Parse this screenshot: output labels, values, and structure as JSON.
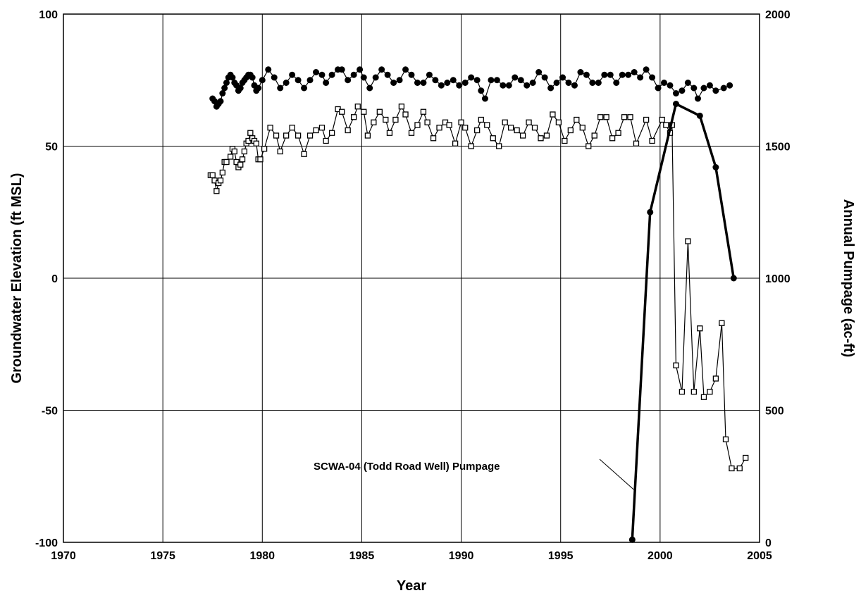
{
  "chart_data": {
    "type": "line",
    "title": "",
    "xlabel": "Year",
    "ylabel": "Groundwater Elevation (ft MSL)",
    "y2label": "Annual Pumpage (ac-ft)",
    "xlim": [
      1970,
      2005
    ],
    "ylim": [
      -100,
      100
    ],
    "y2lim": [
      0,
      2000
    ],
    "x_ticks": [
      "1970",
      "1975",
      "1980",
      "1985",
      "1990",
      "1995",
      "2000",
      "2005"
    ],
    "y_ticks": [
      "-100",
      "-50",
      "0",
      "50",
      "100"
    ],
    "y2_ticks": [
      "0",
      "500",
      "1000",
      "1500",
      "2000"
    ],
    "grid": true,
    "legend": "none",
    "annotation": {
      "text": "SCWA-04 (Todd Road Well) Pumpage",
      "points_to": {
        "x": 1998.6,
        "y2": 200
      }
    },
    "series": [
      {
        "axis": "left",
        "marker": "filled-circle",
        "color": "#000000",
        "points": [
          [
            1977.5,
            68
          ],
          [
            1977.6,
            67
          ],
          [
            1977.7,
            65
          ],
          [
            1977.8,
            66
          ],
          [
            1977.9,
            67
          ],
          [
            1978.0,
            70
          ],
          [
            1978.1,
            72
          ],
          [
            1978.2,
            74
          ],
          [
            1978.3,
            76
          ],
          [
            1978.4,
            77
          ],
          [
            1978.5,
            76
          ],
          [
            1978.6,
            74
          ],
          [
            1978.7,
            73
          ],
          [
            1978.8,
            71
          ],
          [
            1978.9,
            72
          ],
          [
            1979.0,
            74
          ],
          [
            1979.1,
            75
          ],
          [
            1979.2,
            76
          ],
          [
            1979.3,
            77
          ],
          [
            1979.4,
            77
          ],
          [
            1979.5,
            76
          ],
          [
            1979.6,
            73
          ],
          [
            1979.7,
            71
          ],
          [
            1979.8,
            72
          ],
          [
            1980.0,
            75
          ],
          [
            1980.3,
            79
          ],
          [
            1980.6,
            76
          ],
          [
            1980.9,
            72
          ],
          [
            1981.2,
            74
          ],
          [
            1981.5,
            77
          ],
          [
            1981.8,
            75
          ],
          [
            1982.1,
            72
          ],
          [
            1982.4,
            75
          ],
          [
            1982.7,
            78
          ],
          [
            1983.0,
            77
          ],
          [
            1983.2,
            74
          ],
          [
            1983.5,
            77
          ],
          [
            1983.8,
            79
          ],
          [
            1984.0,
            79
          ],
          [
            1984.3,
            75
          ],
          [
            1984.6,
            77
          ],
          [
            1984.9,
            79
          ],
          [
            1985.1,
            76
          ],
          [
            1985.4,
            72
          ],
          [
            1985.7,
            76
          ],
          [
            1986.0,
            79
          ],
          [
            1986.3,
            77
          ],
          [
            1986.6,
            74
          ],
          [
            1986.9,
            75
          ],
          [
            1987.2,
            79
          ],
          [
            1987.5,
            77
          ],
          [
            1987.8,
            74
          ],
          [
            1988.1,
            74
          ],
          [
            1988.4,
            77
          ],
          [
            1988.7,
            75
          ],
          [
            1989.0,
            73
          ],
          [
            1989.3,
            74
          ],
          [
            1989.6,
            75
          ],
          [
            1989.9,
            73
          ],
          [
            1990.2,
            74
          ],
          [
            1990.5,
            76
          ],
          [
            1990.8,
            75
          ],
          [
            1991.0,
            71
          ],
          [
            1991.2,
            68
          ],
          [
            1991.5,
            75
          ],
          [
            1991.8,
            75
          ],
          [
            1992.1,
            73
          ],
          [
            1992.4,
            73
          ],
          [
            1992.7,
            76
          ],
          [
            1993.0,
            75
          ],
          [
            1993.3,
            73
          ],
          [
            1993.6,
            74
          ],
          [
            1993.9,
            78
          ],
          [
            1994.2,
            76
          ],
          [
            1994.5,
            72
          ],
          [
            1994.8,
            74
          ],
          [
            1995.1,
            76
          ],
          [
            1995.4,
            74
          ],
          [
            1995.7,
            73
          ],
          [
            1996.0,
            78
          ],
          [
            1996.3,
            77
          ],
          [
            1996.6,
            74
          ],
          [
            1996.9,
            74
          ],
          [
            1997.2,
            77
          ],
          [
            1997.5,
            77
          ],
          [
            1997.8,
            74
          ],
          [
            1998.1,
            77
          ],
          [
            1998.4,
            77
          ],
          [
            1998.7,
            78
          ],
          [
            1999.0,
            76
          ],
          [
            1999.3,
            79
          ],
          [
            1999.6,
            76
          ],
          [
            1999.9,
            72
          ],
          [
            2000.2,
            74
          ],
          [
            2000.5,
            73
          ],
          [
            2000.8,
            70
          ],
          [
            2001.1,
            71
          ],
          [
            2001.4,
            74
          ],
          [
            2001.7,
            72
          ],
          [
            2001.9,
            68
          ],
          [
            2002.2,
            72
          ],
          [
            2002.5,
            73
          ],
          [
            2002.8,
            71
          ],
          [
            2003.2,
            72
          ],
          [
            2003.5,
            73
          ]
        ]
      },
      {
        "axis": "left",
        "marker": "open-square",
        "color": "#000000",
        "points": [
          [
            1977.4,
            39
          ],
          [
            1977.5,
            39
          ],
          [
            1977.6,
            37
          ],
          [
            1977.7,
            33
          ],
          [
            1977.8,
            36
          ],
          [
            1977.9,
            37
          ],
          [
            1978.0,
            40
          ],
          [
            1978.1,
            44
          ],
          [
            1978.2,
            44
          ],
          [
            1978.4,
            46
          ],
          [
            1978.5,
            49
          ],
          [
            1978.6,
            48
          ],
          [
            1978.7,
            44
          ],
          [
            1978.8,
            42
          ],
          [
            1978.9,
            43
          ],
          [
            1979.0,
            45
          ],
          [
            1979.1,
            48
          ],
          [
            1979.2,
            51
          ],
          [
            1979.3,
            52
          ],
          [
            1979.4,
            55
          ],
          [
            1979.5,
            53
          ],
          [
            1979.6,
            52
          ],
          [
            1979.7,
            51
          ],
          [
            1979.8,
            45
          ],
          [
            1979.9,
            45
          ],
          [
            1980.1,
            49
          ],
          [
            1980.4,
            57
          ],
          [
            1980.7,
            54
          ],
          [
            1980.9,
            48
          ],
          [
            1981.2,
            54
          ],
          [
            1981.5,
            57
          ],
          [
            1981.8,
            54
          ],
          [
            1982.1,
            47
          ],
          [
            1982.4,
            54
          ],
          [
            1982.7,
            56
          ],
          [
            1983.0,
            57
          ],
          [
            1983.2,
            52
          ],
          [
            1983.5,
            55
          ],
          [
            1983.8,
            64
          ],
          [
            1984.0,
            63
          ],
          [
            1984.3,
            56
          ],
          [
            1984.6,
            61
          ],
          [
            1984.8,
            65
          ],
          [
            1985.1,
            63
          ],
          [
            1985.3,
            54
          ],
          [
            1985.6,
            59
          ],
          [
            1985.9,
            63
          ],
          [
            1986.2,
            60
          ],
          [
            1986.4,
            55
          ],
          [
            1986.7,
            60
          ],
          [
            1987.0,
            65
          ],
          [
            1987.2,
            62
          ],
          [
            1987.5,
            55
          ],
          [
            1987.8,
            58
          ],
          [
            1988.1,
            63
          ],
          [
            1988.3,
            59
          ],
          [
            1988.6,
            53
          ],
          [
            1988.9,
            57
          ],
          [
            1989.2,
            59
          ],
          [
            1989.4,
            58
          ],
          [
            1989.7,
            51
          ],
          [
            1990.0,
            59
          ],
          [
            1990.2,
            57
          ],
          [
            1990.5,
            50
          ],
          [
            1990.8,
            56
          ],
          [
            1991.0,
            60
          ],
          [
            1991.3,
            58
          ],
          [
            1991.6,
            53
          ],
          [
            1991.9,
            50
          ],
          [
            1992.2,
            59
          ],
          [
            1992.5,
            57
          ],
          [
            1992.8,
            56
          ],
          [
            1993.1,
            54
          ],
          [
            1993.4,
            59
          ],
          [
            1993.7,
            57
          ],
          [
            1994.0,
            53
          ],
          [
            1994.3,
            54
          ],
          [
            1994.6,
            62
          ],
          [
            1994.9,
            59
          ],
          [
            1995.2,
            52
          ],
          [
            1995.5,
            56
          ],
          [
            1995.8,
            60
          ],
          [
            1996.1,
            57
          ],
          [
            1996.4,
            50
          ],
          [
            1996.7,
            54
          ],
          [
            1997.0,
            61
          ],
          [
            1997.3,
            61
          ],
          [
            1997.6,
            53
          ],
          [
            1997.9,
            55
          ],
          [
            1998.2,
            61
          ],
          [
            1998.5,
            61
          ],
          [
            1998.8,
            51
          ],
          [
            1999.3,
            60
          ],
          [
            1999.6,
            52
          ],
          [
            2000.1,
            60
          ],
          [
            2000.3,
            58
          ],
          [
            2000.5,
            55
          ],
          [
            2000.6,
            58
          ],
          [
            2000.8,
            -33
          ],
          [
            2001.1,
            -43
          ],
          [
            2001.4,
            14
          ],
          [
            2001.7,
            -43
          ],
          [
            2002.0,
            -19
          ],
          [
            2002.2,
            -45
          ],
          [
            2002.5,
            -43
          ],
          [
            2002.8,
            -38
          ],
          [
            2003.1,
            -17
          ],
          [
            2003.3,
            -61
          ],
          [
            2003.6,
            -72
          ],
          [
            2004.0,
            -72
          ],
          [
            2004.3,
            -68
          ]
        ]
      },
      {
        "name": "SCWA-04 (Todd Road Well) Pumpage",
        "axis": "right",
        "marker": "filled-circle",
        "color": "#000000",
        "points": [
          [
            1998.6,
            10
          ],
          [
            1999.5,
            1250
          ],
          [
            2000.8,
            1660
          ],
          [
            2002.0,
            1615
          ],
          [
            2002.8,
            1420
          ],
          [
            2003.7,
            1000
          ]
        ]
      }
    ]
  }
}
